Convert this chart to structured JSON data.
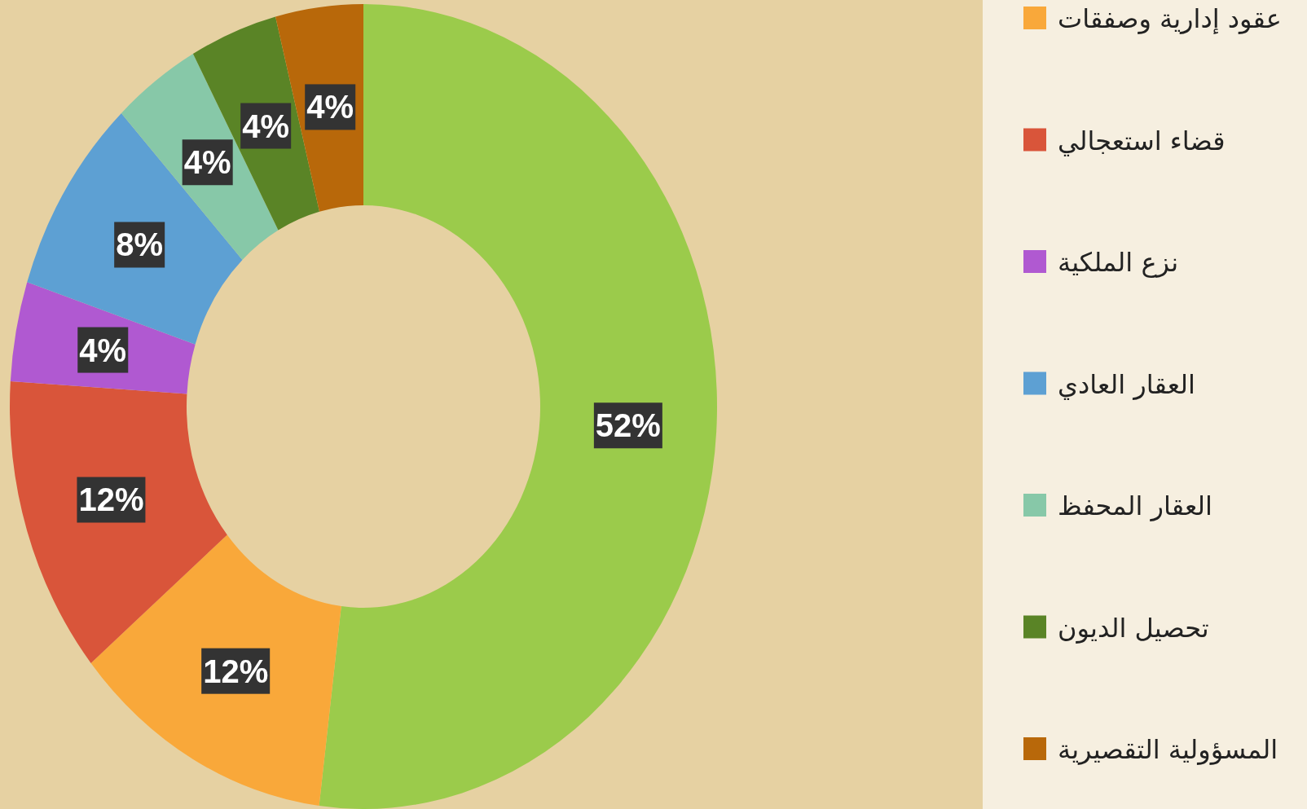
{
  "chart_data": {
    "type": "donut",
    "categories": [
      null,
      "عقود إدارية وصفقات",
      "قضاء استعجالي",
      "نزع الملكية",
      "العقار العادي",
      "العقار المحفظ",
      "تحصيل الديون",
      "المسؤولية التقصيرية"
    ],
    "values": [
      52,
      12,
      12,
      4,
      8,
      4,
      4,
      4
    ],
    "colors": [
      "#9bcb4b",
      "#f9a83a",
      "#d9553a",
      "#b059d1",
      "#5da0d3",
      "#87c8a8",
      "#5a8426",
      "#b8680a"
    ],
    "value_labels": [
      "52%",
      "12%",
      "12%",
      "4%",
      "8%",
      "4%",
      "4%",
      "4%"
    ],
    "legend": "right"
  }
}
